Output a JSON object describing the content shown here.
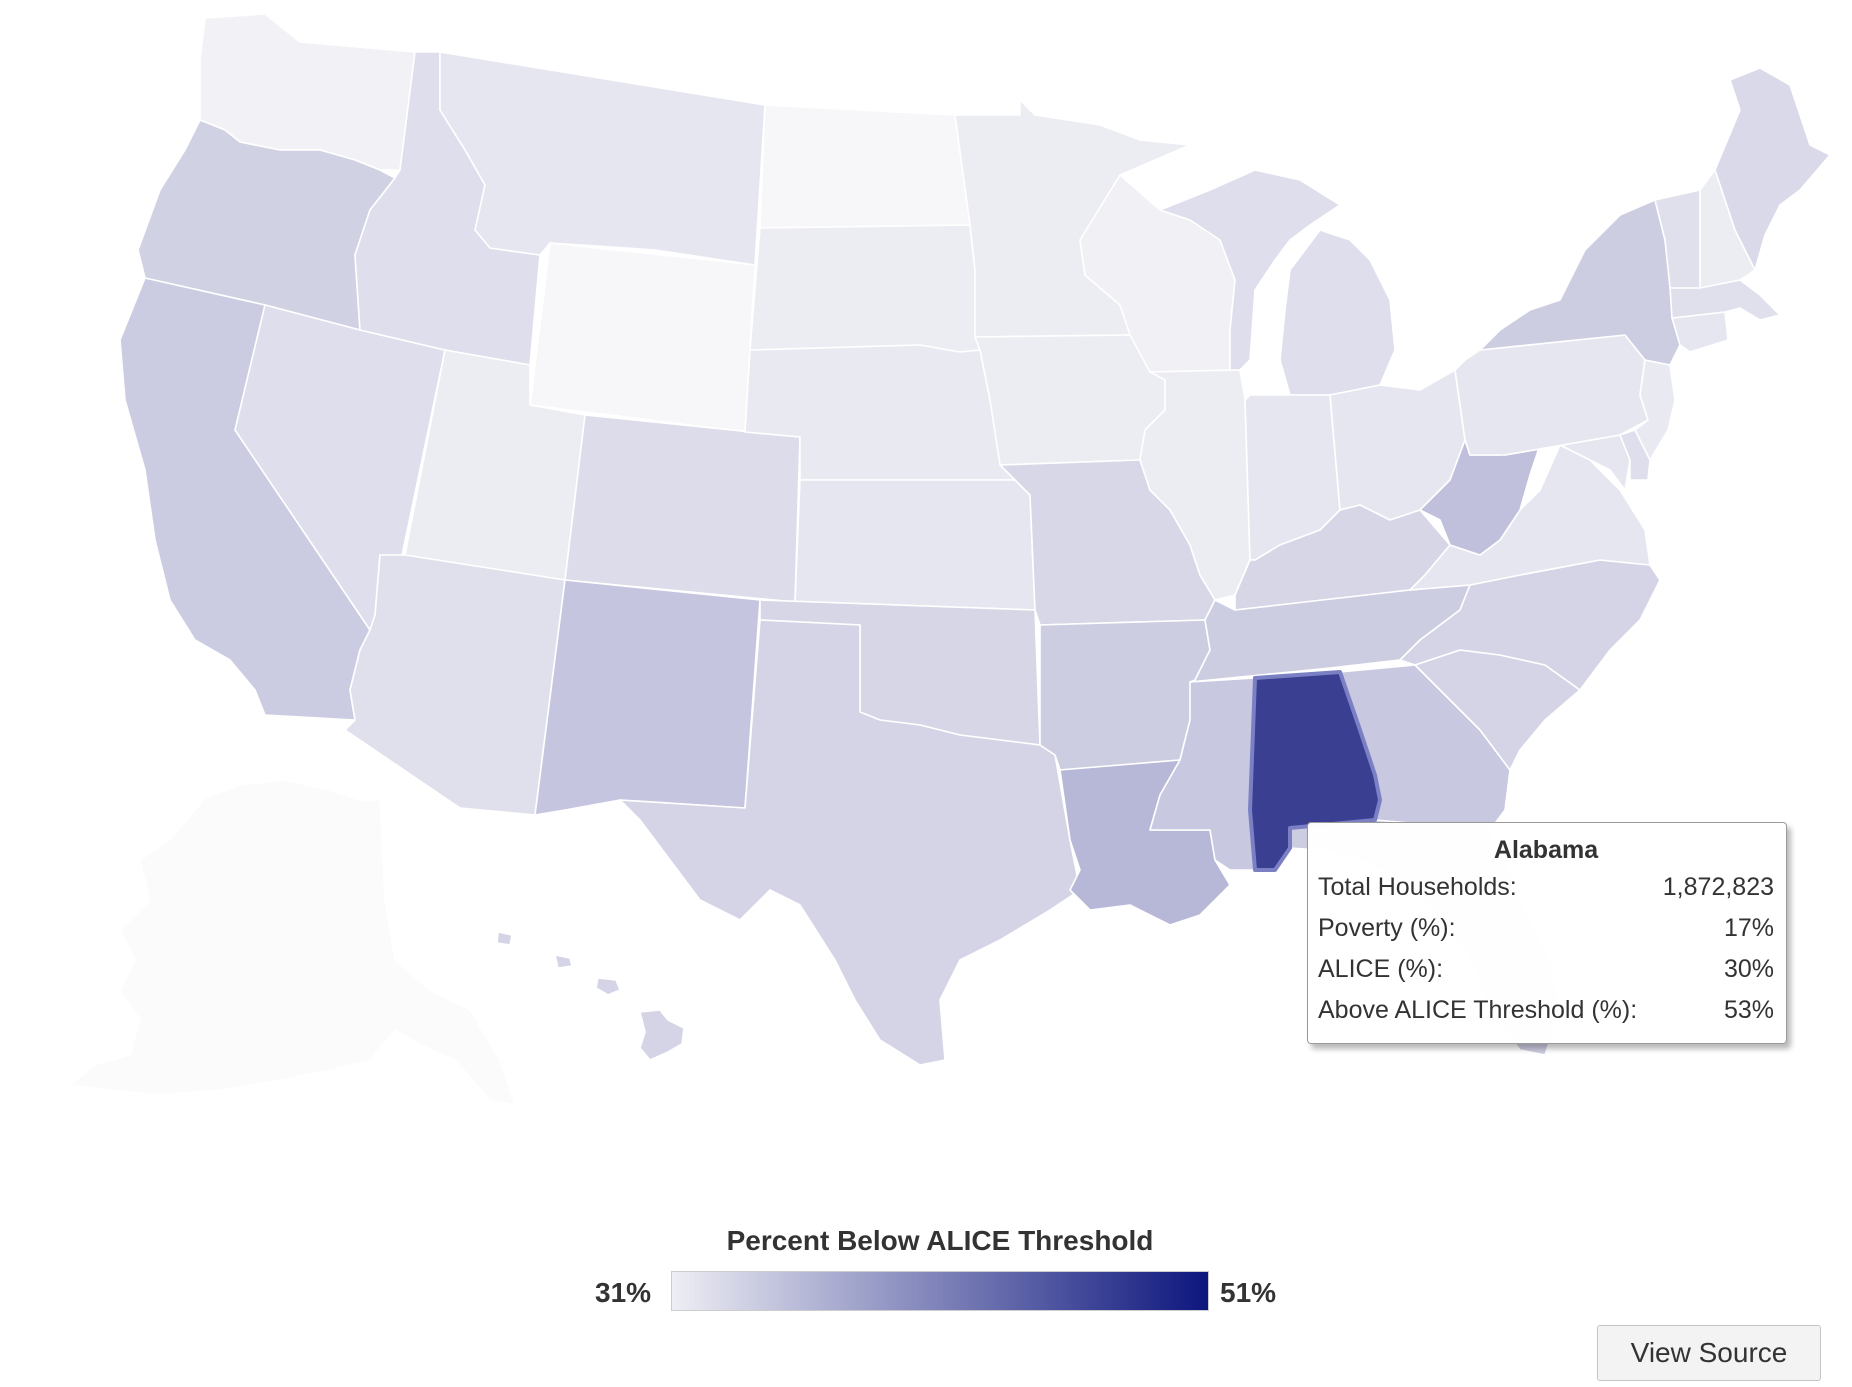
{
  "tooltip": {
    "title": "Alabama",
    "rows": [
      {
        "label": "Total Households:",
        "value": "1,872,823"
      },
      {
        "label": "Poverty (%):",
        "value": "17%"
      },
      {
        "label": "ALICE (%):",
        "value": "30%"
      },
      {
        "label": "Above ALICE Threshold (%):",
        "value": "53%"
      }
    ]
  },
  "legend": {
    "title": "Percent Below ALICE Threshold",
    "min_label": "31%",
    "max_label": "51%",
    "min": 31,
    "max": 51,
    "color_low": "#eeeef4",
    "color_high": "#0d167d"
  },
  "buttons": {
    "view_source": "View Source"
  },
  "map": {
    "highlighted_state": "Alabama",
    "states": [
      {
        "name": "Washington",
        "color": "#f2f2f6"
      },
      {
        "name": "Oregon",
        "color": "#d1d1e4"
      },
      {
        "name": "California",
        "color": "#cbcbe1"
      },
      {
        "name": "Idaho",
        "color": "#dedeec"
      },
      {
        "name": "Nevada",
        "color": "#dedeec"
      },
      {
        "name": "Montana",
        "color": "#e6e6f0"
      },
      {
        "name": "Wyoming",
        "color": "#f7f7f9"
      },
      {
        "name": "Utah",
        "color": "#ececf3"
      },
      {
        "name": "Arizona",
        "color": "#e0e0ec"
      },
      {
        "name": "Colorado",
        "color": "#dcdcea"
      },
      {
        "name": "New Mexico",
        "color": "#c5c5df"
      },
      {
        "name": "North Dakota",
        "color": "#f7f7f9"
      },
      {
        "name": "South Dakota",
        "color": "#ececf3"
      },
      {
        "name": "Nebraska",
        "color": "#e9e9f1"
      },
      {
        "name": "Kansas",
        "color": "#e6e6f0"
      },
      {
        "name": "Oklahoma",
        "color": "#d6d6e7"
      },
      {
        "name": "Texas",
        "color": "#d4d4e6"
      },
      {
        "name": "Minnesota",
        "color": "#ececf3"
      },
      {
        "name": "Iowa",
        "color": "#ececf3"
      },
      {
        "name": "Missouri",
        "color": "#d7d7e8"
      },
      {
        "name": "Arkansas",
        "color": "#cdcde2"
      },
      {
        "name": "Louisiana",
        "color": "#b7b7d7"
      },
      {
        "name": "Wisconsin",
        "color": "#f0f0f5"
      },
      {
        "name": "Illinois",
        "color": "#ececf3"
      },
      {
        "name": "Michigan",
        "color": "#dedeec"
      },
      {
        "name": "Indiana",
        "color": "#e6e6f0"
      },
      {
        "name": "Ohio",
        "color": "#e6e6f0"
      },
      {
        "name": "Kentucky",
        "color": "#d6d6e7"
      },
      {
        "name": "Tennessee",
        "color": "#cdcde2"
      },
      {
        "name": "Mississippi",
        "color": "#c8c8e0"
      },
      {
        "name": "Alabama",
        "color": "#3a3f92"
      },
      {
        "name": "Georgia",
        "color": "#c8c8e0"
      },
      {
        "name": "Florida",
        "color": "#cdcde2"
      },
      {
        "name": "South Carolina",
        "color": "#d4d4e6"
      },
      {
        "name": "North Carolina",
        "color": "#d4d4e6"
      },
      {
        "name": "Virginia",
        "color": "#e6e6f0"
      },
      {
        "name": "West Virginia",
        "color": "#c0c0dc"
      },
      {
        "name": "Pennsylvania",
        "color": "#e6e6f0"
      },
      {
        "name": "New York",
        "color": "#cdcde2"
      },
      {
        "name": "Maine",
        "color": "#d9d9e9"
      },
      {
        "name": "Vermont",
        "color": "#e0e0ec"
      },
      {
        "name": "New Hampshire",
        "color": "#ececf3"
      },
      {
        "name": "Massachusetts",
        "color": "#e0e0ec"
      },
      {
        "name": "Connecticut",
        "color": "#e6e6f0"
      },
      {
        "name": "New Jersey",
        "color": "#e9e9f1"
      },
      {
        "name": "Maryland",
        "color": "#e6e6f0"
      },
      {
        "name": "Delaware",
        "color": "#dedeec"
      },
      {
        "name": "Alaska",
        "color": "#fbfbfc"
      },
      {
        "name": "Hawaii",
        "color": "#d4d4e6"
      }
    ]
  }
}
